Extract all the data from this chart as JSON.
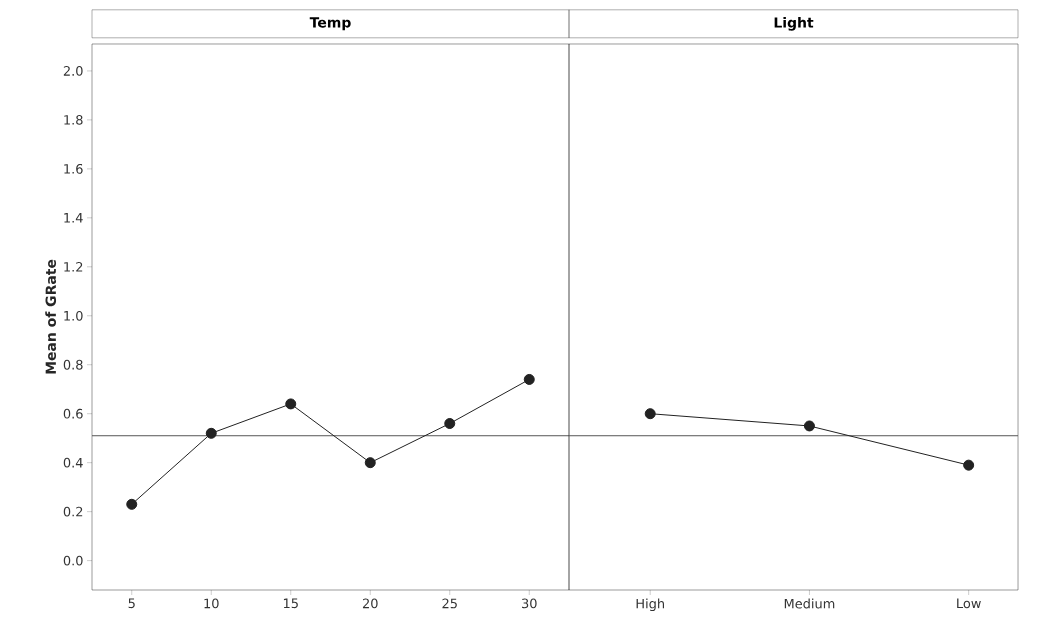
{
  "chart_data": [
    {
      "type": "line",
      "title": "Temp",
      "ylabel": "Mean of GRate",
      "x": [
        5,
        10,
        15,
        20,
        25,
        30
      ],
      "series": [
        {
          "color": "#222222",
          "values": [
            0.23,
            0.52,
            0.64,
            0.4,
            0.56,
            0.74
          ]
        }
      ],
      "xlim": [
        2.5,
        32.5
      ],
      "xticks": [
        5,
        10,
        15,
        20,
        25,
        30
      ],
      "ylim": [
        -0.12,
        2.11
      ],
      "yticks": [
        {
          "value": 0,
          "label": "0.0"
        },
        {
          "value": 0.2,
          "label": "0.2"
        },
        {
          "value": 0.4,
          "label": "0.4"
        },
        {
          "value": 0.6,
          "label": "0.6"
        },
        {
          "value": 0.8,
          "label": "0.8"
        },
        {
          "value": 1.0,
          "label": "1.0"
        },
        {
          "value": 1.2,
          "label": "1.2"
        },
        {
          "value": 1.4,
          "label": "1.4"
        },
        {
          "value": 1.6,
          "label": "1.6"
        },
        {
          "value": 1.8,
          "label": "1.8"
        },
        {
          "value": 2.0,
          "label": "2.0"
        }
      ],
      "ref_lines": [
        {
          "axis": "y",
          "value": 0.51,
          "color": "#555555"
        }
      ],
      "marker": "circle",
      "line_style": "solid",
      "grid": false
    },
    {
      "type": "line",
      "title": "Light",
      "categories": [
        "High",
        "Medium",
        "Low"
      ],
      "series": [
        {
          "color": "#222222",
          "values": [
            0.6,
            0.55,
            0.39
          ]
        }
      ],
      "ylim": [
        -0.12,
        2.11
      ],
      "tick_labels": "x",
      "ref_lines": [
        {
          "axis": "y",
          "value": 0.51,
          "color": "#555555"
        }
      ],
      "marker": "circle",
      "line_style": "solid",
      "grid": false
    }
  ]
}
